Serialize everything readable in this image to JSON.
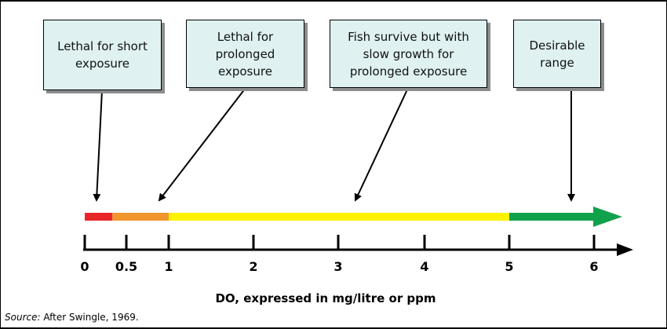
{
  "boxes": [
    {
      "text": "Lethal for short\nexposure"
    },
    {
      "text": "Lethal for\nprolonged\nexposure"
    },
    {
      "text": "Fish survive but with\nslow growth for\nprolonged exposure"
    },
    {
      "text": "Desirable\nrange"
    }
  ],
  "scale": {
    "ticks": [
      "0",
      "0.5",
      "1",
      "2",
      "3",
      "4",
      "5",
      "6"
    ],
    "segments": [
      {
        "from": 0,
        "to": 0.333,
        "color": "#e8262a"
      },
      {
        "from": 0.333,
        "to": 1,
        "color": "#f0962d"
      },
      {
        "from": 1,
        "to": 5,
        "color": "#fff200"
      },
      {
        "from": 5,
        "to": 6.4,
        "color": "#12a14b"
      }
    ]
  },
  "axis_title": "DO, expressed in mg/litre or ppm",
  "source": {
    "label": "Source:",
    "text": " After Swingle, 1969."
  }
}
